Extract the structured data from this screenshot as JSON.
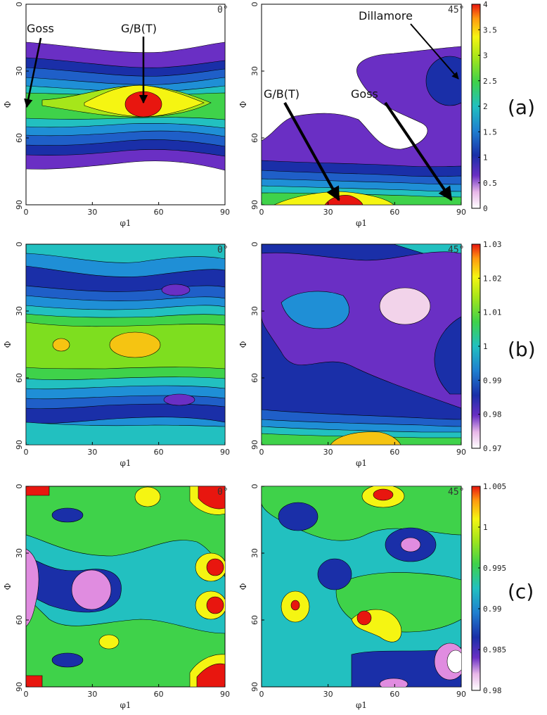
{
  "panel_labels": [
    "(a)",
    "(b)",
    "(c)"
  ],
  "annotation_labels": {
    "goss": "Goss",
    "gbt": "G/B(T)",
    "dillamore": "Dillamore"
  },
  "chart_data": [
    {
      "type": "heatmap",
      "row": "(a)",
      "corner_label": "0°",
      "xlabel": "φ1",
      "ylabel": "Φ",
      "xticks": [
        "0",
        "30",
        "60",
        "90"
      ],
      "yticks": [
        "0",
        "30",
        "60",
        "90"
      ],
      "xlim": [
        0,
        90
      ],
      "ylim": [
        0,
        90
      ],
      "annotations": [
        "Goss",
        "G/B(T)"
      ],
      "colorbar": {
        "min": 0,
        "max": 4,
        "ticks": [
          "0",
          "0.5",
          "1",
          "1.5",
          "2",
          "2.5",
          "3",
          "3.5",
          "4"
        ]
      }
    },
    {
      "type": "heatmap",
      "row": "(a)",
      "corner_label": "45°",
      "xlabel": "φ1",
      "ylabel": "Φ",
      "xticks": [
        "0",
        "30",
        "60",
        "90"
      ],
      "yticks": [
        "0",
        "30",
        "60",
        "90"
      ],
      "xlim": [
        0,
        90
      ],
      "ylim": [
        0,
        90
      ],
      "annotations": [
        "Dillamore",
        "G/B(T)",
        "Goss"
      ]
    },
    {
      "type": "heatmap",
      "row": "(b)",
      "corner_label": "0°",
      "xlabel": "φ1",
      "ylabel": "Φ",
      "xticks": [
        "0",
        "30",
        "60",
        "90"
      ],
      "yticks": [
        "0",
        "30",
        "60",
        "90"
      ],
      "xlim": [
        0,
        90
      ],
      "ylim": [
        0,
        90
      ],
      "colorbar": {
        "min": 0.97,
        "max": 1.03,
        "ticks": [
          "0.97",
          "0.98",
          "0.99",
          "1",
          "1.01",
          "1.02",
          "1.03"
        ]
      }
    },
    {
      "type": "heatmap",
      "row": "(b)",
      "corner_label": "45°",
      "xlabel": "φ1",
      "ylabel": "Φ",
      "xticks": [
        "0",
        "30",
        "60",
        "90"
      ],
      "yticks": [
        "0",
        "30",
        "60",
        "90"
      ],
      "xlim": [
        0,
        90
      ],
      "ylim": [
        0,
        90
      ]
    },
    {
      "type": "heatmap",
      "row": "(c)",
      "corner_label": "0°",
      "xlabel": "φ1",
      "ylabel": "Φ",
      "xticks": [
        "0",
        "30",
        "60",
        "90"
      ],
      "yticks": [
        "0",
        "30",
        "60",
        "90"
      ],
      "xlim": [
        0,
        90
      ],
      "ylim": [
        0,
        90
      ],
      "colorbar": {
        "min": 0.98,
        "max": 1.005,
        "ticks": [
          "0.98",
          "0.985",
          "0.99",
          "0.995",
          "1",
          "1.005"
        ]
      }
    },
    {
      "type": "heatmap",
      "row": "(c)",
      "corner_label": "45°",
      "xlabel": "φ1",
      "ylabel": "Φ",
      "xticks": [
        "0",
        "30",
        "60",
        "90"
      ],
      "yticks": [
        "0",
        "30",
        "60",
        "90"
      ],
      "xlim": [
        0,
        90
      ],
      "ylim": [
        0,
        90
      ]
    }
  ]
}
